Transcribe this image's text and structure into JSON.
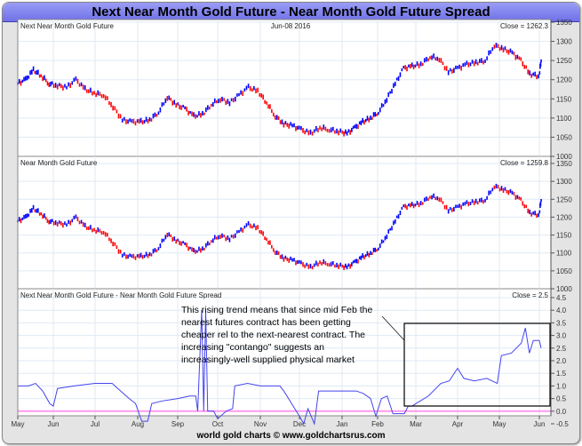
{
  "title": "Next Near Month Gold Future - Near Month Gold Future Spread",
  "footer": "world gold charts © www.goldchartsrus.com",
  "colors": {
    "up": "#0000ff",
    "down": "#ff0000",
    "spread_line": "#4444ee",
    "zero_line": "#ff99ee",
    "title_bar": "#7f81ee"
  },
  "chart_data": [
    {
      "type": "line",
      "title": "Next Near Month Gold Future",
      "date_label": "Jun-08 2016",
      "close_label": "Close = 1262.3",
      "ylim": [
        1000,
        1350
      ],
      "yticks": [
        1000,
        1050,
        1100,
        1150,
        1200,
        1250,
        1300,
        1350
      ],
      "values": [
        1190,
        1200,
        1225,
        1210,
        1190,
        1185,
        1180,
        1200,
        1175,
        1165,
        1160,
        1130,
        1095,
        1090,
        1090,
        1095,
        1115,
        1155,
        1135,
        1125,
        1105,
        1110,
        1135,
        1150,
        1140,
        1160,
        1180,
        1170,
        1140,
        1105,
        1085,
        1080,
        1070,
        1060,
        1075,
        1070,
        1065,
        1060,
        1075,
        1090,
        1100,
        1115,
        1150,
        1190,
        1230,
        1235,
        1240,
        1260,
        1255,
        1220,
        1230,
        1240,
        1245,
        1250,
        1290,
        1280,
        1270,
        1250,
        1215,
        1210,
        1262
      ]
    },
    {
      "type": "line",
      "title": "Near Month Gold Future",
      "close_label": "Close = 1259.8",
      "ylim": [
        1000,
        1350
      ],
      "yticks": [
        1000,
        1050,
        1100,
        1150,
        1200,
        1250,
        1300,
        1350
      ],
      "values": [
        1189,
        1199,
        1224,
        1209,
        1189,
        1184,
        1179,
        1199,
        1174,
        1164,
        1159,
        1129,
        1094,
        1089,
        1090,
        1095,
        1114,
        1154,
        1134,
        1124,
        1104,
        1110,
        1134,
        1149,
        1139,
        1159,
        1179,
        1169,
        1139,
        1104,
        1085,
        1080,
        1070,
        1060,
        1074,
        1070,
        1065,
        1060,
        1074,
        1089,
        1099,
        1114,
        1149,
        1189,
        1229,
        1233,
        1238,
        1258,
        1253,
        1218,
        1228,
        1238,
        1243,
        1248,
        1287,
        1277,
        1267,
        1247,
        1212,
        1207,
        1260
      ]
    },
    {
      "type": "line",
      "title": "Next Near Month Gold Future - Near Month Gold Future Spread",
      "close_label": "Close = 2.5",
      "ylim": [
        -0.5,
        4.5
      ],
      "yticks": [
        -0.5,
        0.0,
        0.5,
        1.0,
        1.5,
        2.0,
        2.5,
        3.0,
        3.5,
        4.0,
        4.5
      ],
      "ytick_labels": [
        "-0.5",
        "0.0",
        "0.5",
        "1.0",
        "1.5",
        "2.0",
        "2.5",
        "3.0",
        "3.5",
        "4.0",
        "4.5"
      ],
      "x_months": [
        0,
        0.3,
        0.5,
        0.7,
        0.9,
        1.0,
        1.1,
        1.5,
        2.0,
        2.4,
        2.6,
        2.8,
        2.95,
        3.1,
        3.25,
        3.35,
        3.6,
        4.0,
        4.3,
        4.45,
        4.5,
        4.6,
        4.65,
        4.7,
        4.75,
        4.9,
        5.0,
        5.2,
        5.35,
        5.4,
        5.7,
        6.0,
        6.5,
        6.6,
        6.8,
        7.0,
        7.1,
        7.2,
        7.35,
        7.45,
        8.0,
        8.4,
        8.6,
        8.8,
        8.95,
        9.1,
        9.25,
        9.4,
        9.7,
        9.8,
        9.9,
        10.0,
        10.3,
        10.6,
        10.8,
        11.0,
        11.15,
        11.4,
        11.7,
        11.95,
        12.05,
        12.3,
        12.55,
        12.65,
        12.75,
        12.85,
        13.0,
        13.15
      ],
      "values": [
        1.0,
        1.0,
        1.1,
        0.8,
        0.3,
        0.2,
        0.9,
        1.0,
        1.1,
        1.1,
        0.8,
        0.5,
        0.3,
        -0.4,
        -0.4,
        0.3,
        0.4,
        0.5,
        0.6,
        0.6,
        0.0,
        4.0,
        0.0,
        4.0,
        0.0,
        0.0,
        -0.3,
        0.0,
        0.1,
        1.0,
        1.1,
        1.0,
        1.0,
        0.8,
        0.3,
        -0.2,
        -0.5,
        0.1,
        -0.5,
        0.8,
        0.8,
        0.8,
        0.7,
        0.5,
        -0.2,
        0.5,
        0.6,
        -0.1,
        -0.1,
        0.2,
        0.2,
        0.3,
        0.6,
        1.1,
        1.2,
        1.7,
        1.3,
        1.2,
        1.3,
        1.1,
        2.2,
        2.3,
        2.7,
        3.3,
        2.3,
        2.8,
        2.8,
        2.5
      ],
      "annotation": [
        "This rising trend means that since mid Feb the",
        "nearest futures contract has been getting",
        "cheaper rel to the next-nearest contract. The",
        "increasing \"contango\" suggests an",
        "increasingly-well supplied physical market"
      ]
    }
  ],
  "x_tick_labels": [
    "May",
    "Jun",
    "Jul",
    "Aug",
    "Sep",
    "Oct",
    "Nov",
    "Dec",
    "Jan",
    "Feb",
    "Mar",
    "Apr",
    "May",
    "Jun"
  ]
}
